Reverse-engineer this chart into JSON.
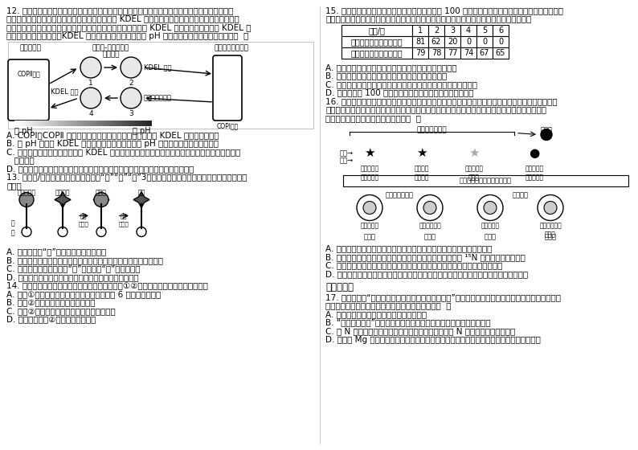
{
  "bg_color": "#ffffff",
  "text_color": "#000000",
  "font_size": 7.5,
  "table_headers": [
    "时间/天",
    "1",
    "2",
    "3",
    "4",
    "5",
    "6"
  ],
  "table_row1": [
    "细胞无核部分的存活个数",
    "81",
    "62",
    "20",
    "0",
    "0",
    "0"
  ],
  "table_row2": [
    "细胞有核部分的存活个数",
    "79",
    "78",
    "77",
    "74",
    "67",
    "65"
  ]
}
